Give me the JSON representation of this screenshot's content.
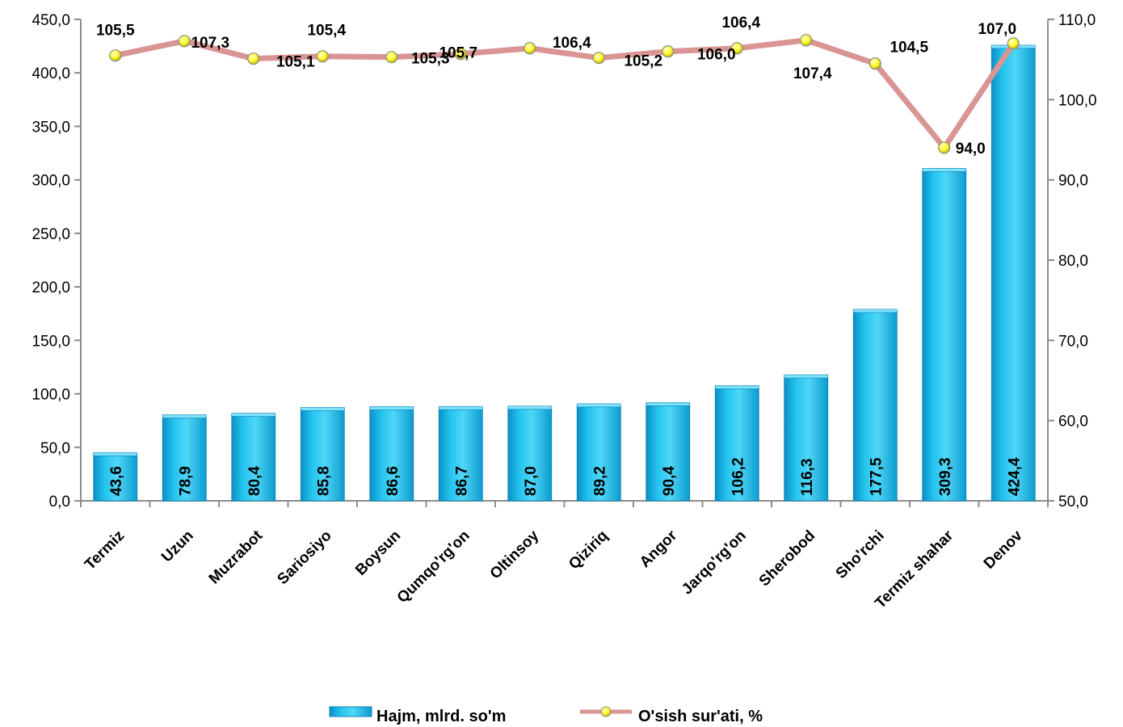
{
  "chart_data": {
    "type": "bar",
    "categories": [
      "Termiz",
      "Uzun",
      "Muzrabot",
      "Sariosiyo",
      "Boysun",
      "Qumqo'rg'on",
      "Oltinsoy",
      "Qiziriq",
      "Angor",
      "Jarqo'rg'on",
      "Sherobod",
      "Sho'rchi",
      "Termiz shahar",
      "Denov"
    ],
    "series": [
      {
        "name": "Hajm, mlrd. so'm",
        "type": "bar",
        "axis": "left",
        "values": [
          43.6,
          78.9,
          80.4,
          85.8,
          86.6,
          86.7,
          87.0,
          89.2,
          90.4,
          106.2,
          116.3,
          177.5,
          309.3,
          424.4
        ],
        "labels": [
          "43,6",
          "78,9",
          "80,4",
          "85,8",
          "86,6",
          "86,7",
          "87,0",
          "89,2",
          "90,4",
          "106,2",
          "116,3",
          "177,5",
          "309,3",
          "424,4"
        ],
        "color": "#1fbde8"
      },
      {
        "name": "O'sish sur'ati, %",
        "type": "line",
        "axis": "right",
        "values": [
          105.5,
          107.3,
          105.1,
          105.4,
          105.3,
          105.7,
          106.4,
          105.2,
          106.0,
          106.4,
          107.4,
          104.5,
          94.0,
          107.0
        ],
        "labels": [
          "105,5",
          "107,3",
          "105,1",
          "105,4",
          "105,3",
          "105,7",
          "106,4",
          "105,2",
          "106,0",
          "106,4",
          "107,4",
          "104,5",
          "94,0",
          "107,0"
        ],
        "color": "#d99594",
        "marker_color": "#ffff33"
      }
    ],
    "y_left": {
      "lim": [
        0,
        450
      ],
      "ticks": [
        "0,0",
        "50,0",
        "100,0",
        "150,0",
        "200,0",
        "250,0",
        "300,0",
        "350,0",
        "400,0",
        "450,0"
      ]
    },
    "y_right": {
      "lim": [
        50,
        110
      ],
      "ticks": [
        "50,0",
        "60,0",
        "70,0",
        "80,0",
        "90,0",
        "100,0",
        "110,0"
      ]
    },
    "grid": false,
    "legend": "bottom",
    "title": "",
    "xlabel": "",
    "ylabel": ""
  }
}
